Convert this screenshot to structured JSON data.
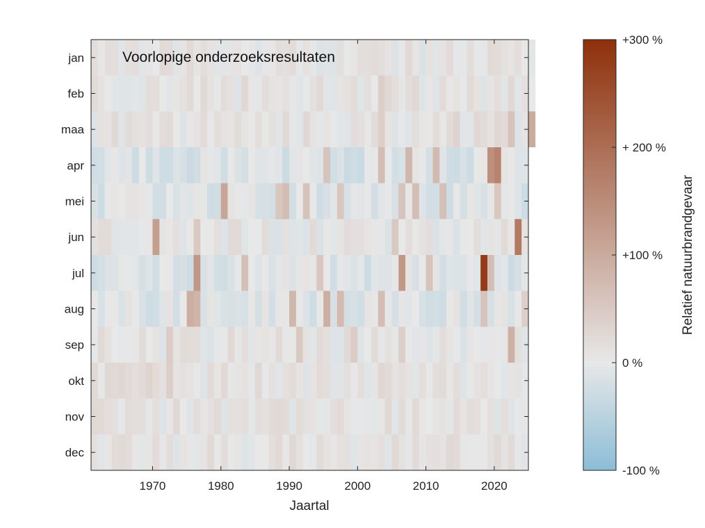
{
  "chart_data": {
    "type": "heatmap",
    "annotation": "Voorlopige onderzoeksresultaten",
    "xlabel": "Jaartal",
    "ylabel": "",
    "x_ticks": [
      1970,
      1980,
      1990,
      2000,
      2010,
      2020
    ],
    "xlim": [
      1961,
      2025
    ],
    "years": [
      1961,
      2024
    ],
    "months": [
      "jan",
      "feb",
      "maa",
      "apr",
      "mei",
      "jun",
      "jul",
      "aug",
      "sep",
      "okt",
      "nov",
      "dec"
    ],
    "colorbar": {
      "label": "Relatief natuurbrandgevaar",
      "range": [
        -100,
        300
      ],
      "ticks": [
        {
          "value": 300,
          "label": "+300 %"
        },
        {
          "value": 200,
          "label": "+ 200 %"
        },
        {
          "value": 100,
          "label": "+100 %"
        },
        {
          "value": 0,
          "label": "0 %"
        },
        {
          "value": -100,
          "label": "-100 %"
        }
      ],
      "colors": {
        "low": "#8bbdd6",
        "mid": "#e8e8e8",
        "high": "#8e300a"
      }
    },
    "baseline_by_month": {
      "jan": 5,
      "feb": 8,
      "maa": 8,
      "apr": -12,
      "mei": -10,
      "jun": 5,
      "jul": -10,
      "aug": -10,
      "sep": 5,
      "okt": 8,
      "nov": 8,
      "dec": 8
    },
    "highlights": [
      {
        "month": "apr",
        "year": 2019,
        "value": 145
      },
      {
        "month": "apr",
        "year": 2020,
        "value": 165
      },
      {
        "month": "apr",
        "year": 2003,
        "value": 70
      },
      {
        "month": "apr",
        "year": 2007,
        "value": 80
      },
      {
        "month": "apr",
        "year": 2011,
        "value": 75
      },
      {
        "month": "apr",
        "year": 1995,
        "value": 60
      },
      {
        "month": "mei",
        "year": 1980,
        "value": 110
      },
      {
        "month": "mei",
        "year": 1989,
        "value": 70
      },
      {
        "month": "mei",
        "year": 1988,
        "value": 55
      },
      {
        "month": "mei",
        "year": 1992,
        "value": 60
      },
      {
        "month": "mei",
        "year": 1997,
        "value": 55
      },
      {
        "month": "mei",
        "year": 2006,
        "value": 60
      },
      {
        "month": "mei",
        "year": 2008,
        "value": 70
      },
      {
        "month": "mei",
        "year": 2012,
        "value": 65
      },
      {
        "month": "mei",
        "year": 2020,
        "value": 55
      },
      {
        "month": "jun",
        "year": 1970,
        "value": 120
      },
      {
        "month": "jun",
        "year": 2023,
        "value": 180
      },
      {
        "month": "jun",
        "year": 2005,
        "value": 50
      },
      {
        "month": "jun",
        "year": 1976,
        "value": 50
      },
      {
        "month": "jul",
        "year": 2018,
        "value": 280
      },
      {
        "month": "jul",
        "year": 1976,
        "value": 130
      },
      {
        "month": "jul",
        "year": 2006,
        "value": 130
      },
      {
        "month": "jul",
        "year": 1983,
        "value": 65
      },
      {
        "month": "jul",
        "year": 2010,
        "value": 60
      },
      {
        "month": "jul",
        "year": 2019,
        "value": 70
      },
      {
        "month": "jul",
        "year": 1994,
        "value": 55
      },
      {
        "month": "aug",
        "year": 1975,
        "value": 95
      },
      {
        "month": "aug",
        "year": 1976,
        "value": 85
      },
      {
        "month": "aug",
        "year": 1995,
        "value": 95
      },
      {
        "month": "aug",
        "year": 1990,
        "value": 80
      },
      {
        "month": "aug",
        "year": 1997,
        "value": 75
      },
      {
        "month": "aug",
        "year": 2003,
        "value": 70
      },
      {
        "month": "aug",
        "year": 2018,
        "value": 60
      },
      {
        "month": "aug",
        "year": 2024,
        "value": 40
      },
      {
        "month": "sep",
        "year": 2022,
        "value": 90
      },
      {
        "month": "sep",
        "year": 1991,
        "value": 50
      },
      {
        "month": "sep",
        "year": 1999,
        "value": 45
      },
      {
        "month": "sep",
        "year": 2006,
        "value": 40
      },
      {
        "month": "sep",
        "year": 1972,
        "value": 45
      },
      {
        "month": "maa",
        "year": 2022,
        "value": 60
      },
      {
        "month": "maa",
        "year": 2025,
        "value": 100
      },
      {
        "month": "maa",
        "year": 2003,
        "value": 40
      },
      {
        "month": "maa",
        "year": 2014,
        "value": 35
      },
      {
        "month": "feb",
        "year": 2003,
        "value": 40
      },
      {
        "month": "okt",
        "year": 1969,
        "value": 35
      },
      {
        "month": "okt",
        "year": 1972,
        "value": 40
      }
    ],
    "gaps": [
      {
        "month": "apr",
        "year": 2025
      },
      {
        "month": "mei",
        "year": 2025
      },
      {
        "month": "jun",
        "year": 2025
      },
      {
        "month": "jul",
        "year": 2025
      },
      {
        "month": "aug",
        "year": 2025
      },
      {
        "month": "sep",
        "year": 2025
      },
      {
        "month": "okt",
        "year": 2025
      },
      {
        "month": "nov",
        "year": 2025
      },
      {
        "month": "dec",
        "year": 2025
      }
    ]
  }
}
